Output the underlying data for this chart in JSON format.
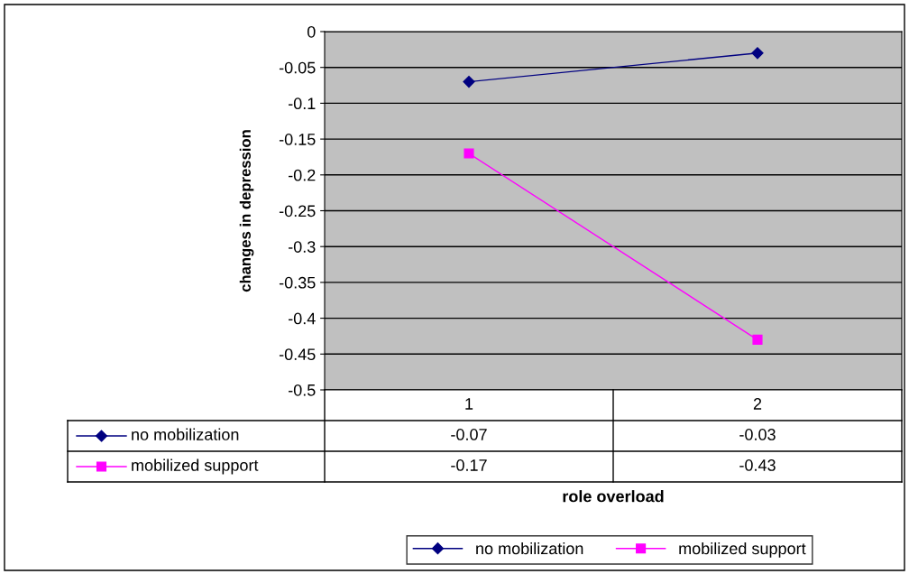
{
  "chart_data": {
    "type": "line",
    "xlabel": "role overload",
    "ylabel": "changes in depression",
    "categories": [
      "1",
      "2"
    ],
    "series": [
      {
        "name": "no mobilization",
        "color": "#000080",
        "marker": "diamond",
        "values": [
          -0.07,
          -0.03
        ]
      },
      {
        "name": "mobilized support",
        "color": "#ff00ff",
        "marker": "square",
        "values": [
          -0.17,
          -0.43
        ]
      }
    ],
    "ylim": [
      -0.5,
      0
    ],
    "yticks": [
      -0.5,
      -0.45,
      -0.4,
      -0.35,
      -0.3,
      -0.25,
      -0.2,
      -0.15,
      -0.1,
      -0.05,
      0
    ],
    "grid": "y",
    "legend": "bottom",
    "data_labels": true,
    "line_style": "solid"
  }
}
